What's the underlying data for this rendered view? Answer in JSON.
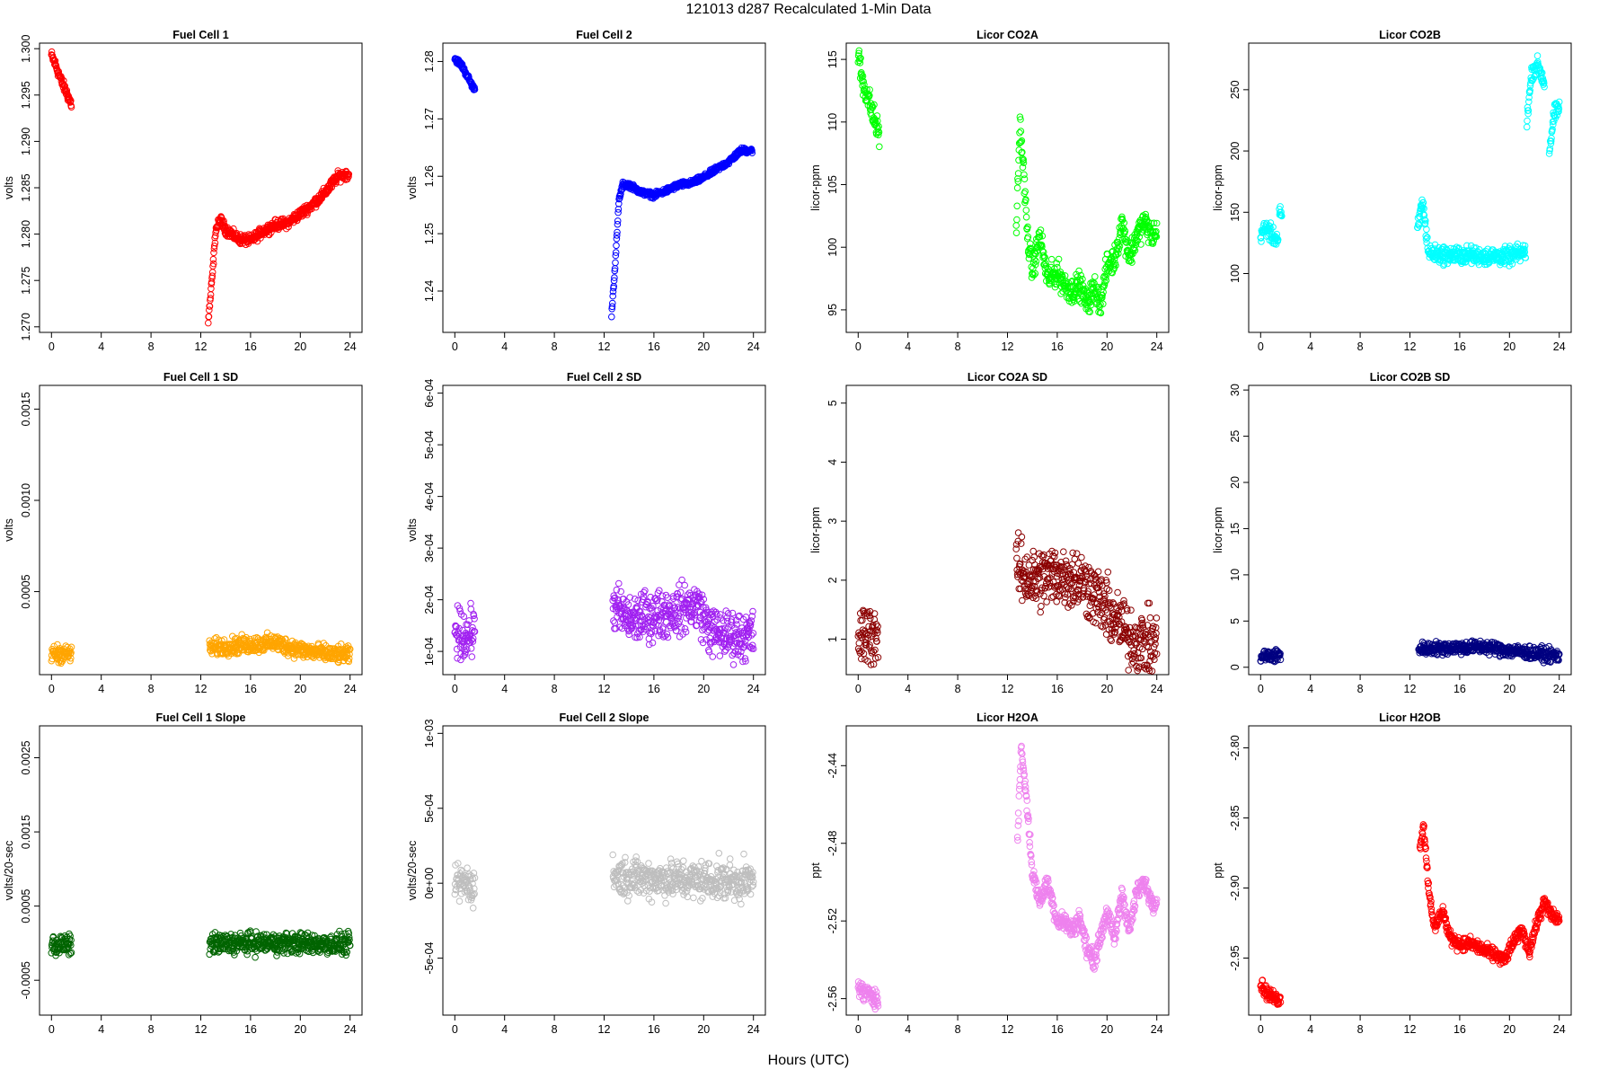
{
  "figure": {
    "title": "121013   d287   Recalculated 1-Min Data",
    "xlabel": "Hours (UTC)"
  },
  "chart_data": [
    {
      "type": "scatter",
      "title": "Fuel Cell 1",
      "ylabel": "volts",
      "color": "#ff0000",
      "xlim": [
        -0.96,
        24.96
      ],
      "xticks": [
        0,
        4,
        8,
        12,
        16,
        20,
        24
      ],
      "ylim": [
        1.2694,
        1.3006
      ],
      "yticks": [
        1.27,
        1.275,
        1.28,
        1.285,
        1.29,
        1.295,
        1.3
      ],
      "ytick_labels": [
        "1.270",
        "1.275",
        "1.280",
        "1.285",
        "1.290",
        "1.295",
        "1.300"
      ],
      "segments": [
        {
          "x": [
            0,
            0.4,
            0.8,
            1.2,
            1.6
          ],
          "y": [
            1.2993,
            1.298,
            1.2965,
            1.2953,
            1.294
          ]
        },
        {
          "x": [
            12.6,
            12.9,
            13.2,
            13.6,
            14,
            15,
            16,
            17,
            18,
            19,
            20,
            21,
            22,
            23,
            23.9
          ],
          "y": [
            1.2705,
            1.275,
            1.2805,
            1.2815,
            1.2805,
            1.2795,
            1.2793,
            1.2803,
            1.281,
            1.2812,
            1.2822,
            1.2832,
            1.2845,
            1.2862,
            1.2865
          ]
        }
      ],
      "spread": 0.00045
    },
    {
      "type": "scatter",
      "title": "Fuel Cell 2",
      "ylabel": "volts",
      "color": "#0000ff",
      "xlim": [
        -0.96,
        24.96
      ],
      "xticks": [
        0,
        4,
        8,
        12,
        16,
        20,
        24
      ],
      "ylim": [
        1.2328,
        1.2832
      ],
      "yticks": [
        1.24,
        1.25,
        1.26,
        1.27,
        1.28
      ],
      "ytick_labels": [
        "1.24",
        "1.25",
        "1.26",
        "1.27",
        "1.28"
      ],
      "segments": [
        {
          "x": [
            0,
            0.5,
            1,
            1.6
          ],
          "y": [
            1.2805,
            1.2795,
            1.2775,
            1.275
          ]
        },
        {
          "x": [
            12.6,
            12.9,
            13.2,
            13.5,
            14,
            15,
            16,
            17,
            18,
            19,
            20,
            21,
            22,
            23,
            23.9
          ],
          "y": [
            1.236,
            1.245,
            1.256,
            1.2585,
            1.2585,
            1.2572,
            1.2567,
            1.2575,
            1.2585,
            1.2588,
            1.2598,
            1.2612,
            1.2625,
            1.2645,
            1.2645
          ]
        }
      ],
      "spread": 0.0004
    },
    {
      "type": "scatter",
      "title": "Licor CO2A",
      "ylabel": "licor-ppm",
      "color": "#00ff00",
      "xlim": [
        -0.96,
        24.96
      ],
      "xticks": [
        0,
        4,
        8,
        12,
        16,
        20,
        24
      ],
      "ylim": [
        93.2,
        116.3
      ],
      "yticks": [
        95,
        100,
        105,
        110,
        115
      ],
      "ytick_labels": [
        "95",
        "100",
        "105",
        "110",
        "115"
      ],
      "segments": [
        {
          "x": [
            0,
            0.4,
            0.8,
            1.2,
            1.7
          ],
          "y": [
            115.3,
            113,
            112,
            110.5,
            109
          ]
        },
        {
          "x": [
            12.7,
            13,
            13.3,
            13.6,
            14,
            14.6,
            15.2,
            16,
            16.6,
            17.2,
            17.8,
            18.4,
            19,
            19.5,
            20,
            20.6,
            21.2,
            21.8,
            22.4,
            23,
            23.6,
            24
          ],
          "y": [
            101,
            110,
            106,
            101,
            98,
            101,
            97.5,
            98,
            97,
            96.5,
            97,
            95.5,
            96.8,
            95.5,
            98.5,
            99,
            102,
            99.2,
            101,
            102,
            101,
            101
          ]
        }
      ],
      "spread": 0.9
    },
    {
      "type": "scatter",
      "title": "Licor CO2B",
      "ylabel": "licor-ppm",
      "color": "#00ffff",
      "xlim": [
        -0.96,
        24.96
      ],
      "xticks": [
        0,
        4,
        8,
        12,
        16,
        20,
        24
      ],
      "ylim": [
        52,
        288
      ],
      "yticks": [
        100,
        150,
        200,
        250
      ],
      "ytick_labels": [
        "100",
        "150",
        "200",
        "250"
      ],
      "segments": [
        {
          "x": [
            0,
            0.5,
            1,
            1.4
          ],
          "y": [
            133,
            137,
            130,
            128
          ]
        },
        {
          "x": [
            1.5,
            1.7
          ],
          "y": [
            150,
            145
          ]
        },
        {
          "x": [
            12.6,
            13,
            13.5,
            14,
            15,
            16,
            17,
            18,
            19,
            20,
            21,
            21.3
          ],
          "y": [
            135,
            160,
            117,
            116,
            115,
            115,
            115,
            114,
            114,
            114,
            117,
            118
          ]
        },
        {
          "x": [
            21.4,
            21.8,
            22.3,
            22.8
          ],
          "y": [
            225,
            265,
            270,
            255
          ]
        },
        {
          "x": [
            23.2,
            23.6,
            24
          ],
          "y": [
            200,
            230,
            235
          ]
        }
      ],
      "spread": 6
    },
    {
      "type": "scatter",
      "title": "Fuel Cell 1 SD",
      "ylabel": "volts",
      "color": "#ffa500",
      "xlim": [
        -0.96,
        24.96
      ],
      "xticks": [
        0,
        4,
        8,
        12,
        16,
        20,
        24
      ],
      "ylim": [
        4.5e-05,
        0.00163
      ],
      "yticks": [
        0.0005,
        0.001,
        0.0015
      ],
      "ytick_labels": [
        "0.0005",
        "0.0010",
        "0.0015"
      ],
      "segments": [
        {
          "x": [
            0,
            0.8,
            1.6
          ],
          "y": [
            0.00016,
            0.00016,
            0.00016
          ]
        },
        {
          "x": [
            12.7,
            14,
            16,
            18,
            20,
            22,
            24
          ],
          "y": [
            0.00019,
            0.0002,
            0.00021,
            0.00022,
            0.00018,
            0.00016,
            0.00015
          ]
        }
      ],
      "spread": 4e-05
    },
    {
      "type": "scatter",
      "title": "Fuel Cell 2 SD",
      "ylabel": "volts",
      "color": "#a020f0",
      "xlim": [
        -0.96,
        24.96
      ],
      "xticks": [
        0,
        4,
        8,
        12,
        16,
        20,
        24
      ],
      "ylim": [
        5.5e-05,
        0.000615
      ],
      "yticks": [
        0.0001,
        0.0002,
        0.0003,
        0.0004,
        0.0005,
        0.0006
      ],
      "ytick_labels": [
        "1e-04",
        "2e-04",
        "3e-04",
        "4e-04",
        "5e-04",
        "6e-04"
      ],
      "segments": [
        {
          "x": [
            0,
            0.8,
            1.6
          ],
          "y": [
            0.00014,
            0.00013,
            0.00014
          ]
        },
        {
          "x": [
            12.7,
            14,
            16,
            18,
            19.5,
            20.5,
            22,
            24
          ],
          "y": [
            0.00019,
            0.00016,
            0.00017,
            0.00018,
            0.00019,
            0.00014,
            0.00013,
            0.00013
          ]
        }
      ],
      "spread": 4e-05
    },
    {
      "type": "scatter",
      "title": "Licor CO2A SD",
      "ylabel": "licor-ppm",
      "color": "#8b0000",
      "xlim": [
        -0.96,
        24.96
      ],
      "xticks": [
        0,
        4,
        8,
        12,
        16,
        20,
        24
      ],
      "ylim": [
        0.4,
        5.3
      ],
      "yticks": [
        1,
        2,
        3,
        4,
        5
      ],
      "ytick_labels": [
        "1",
        "2",
        "3",
        "4",
        "5"
      ],
      "segments": [
        {
          "x": [
            0,
            0.8,
            1.6
          ],
          "y": [
            1.0,
            1.1,
            1.1
          ]
        },
        {
          "x": [
            12.7,
            14,
            16,
            18,
            20,
            22,
            24
          ],
          "y": [
            2.2,
            2.0,
            2.1,
            2.0,
            1.5,
            1.0,
            0.9
          ]
        }
      ],
      "spread": 0.45
    },
    {
      "type": "scatter",
      "title": "Licor CO2B SD",
      "ylabel": "licor-ppm",
      "color": "#000080",
      "xlim": [
        -0.96,
        24.96
      ],
      "xticks": [
        0,
        4,
        8,
        12,
        16,
        20,
        24
      ],
      "ylim": [
        -0.8,
        30.5
      ],
      "yticks": [
        0,
        5,
        10,
        15,
        20,
        25,
        30
      ],
      "ytick_labels": [
        "0",
        "5",
        "10",
        "15",
        "20",
        "25",
        "30"
      ],
      "segments": [
        {
          "x": [
            0,
            0.8,
            1.6
          ],
          "y": [
            1.2,
            1.2,
            1.3
          ]
        },
        {
          "x": [
            12.7,
            15,
            18,
            20,
            22,
            24
          ],
          "y": [
            2.0,
            2.1,
            2.2,
            1.8,
            1.5,
            1.2
          ]
        }
      ],
      "spread": 0.6
    },
    {
      "type": "scatter",
      "title": "Fuel Cell 1 Slope",
      "ylabel": "volts/20-sec",
      "color": "#006400",
      "xlim": [
        -0.96,
        24.96
      ],
      "xticks": [
        0,
        4,
        8,
        12,
        16,
        20,
        24
      ],
      "ylim": [
        -0.00097,
        0.00293
      ],
      "yticks": [
        -0.0005,
        0.0005,
        0.0015,
        0.0025
      ],
      "ytick_labels": [
        "-0.0005",
        "0.0005",
        "0.0015",
        "0.0025"
      ],
      "segments": [
        {
          "x": [
            0,
            0.8,
            1.6
          ],
          "y": [
            -3e-05,
            -3e-05,
            -3e-05
          ]
        },
        {
          "x": [
            12.7,
            16,
            20,
            24
          ],
          "y": [
            -1e-05,
            0,
            0,
            -2e-05
          ]
        }
      ],
      "spread": 0.00012
    },
    {
      "type": "scatter",
      "title": "Fuel Cell 2 Slope",
      "ylabel": "volts/20-sec",
      "color": "#bebebe",
      "xlim": [
        -0.96,
        24.96
      ],
      "xticks": [
        0,
        4,
        8,
        12,
        16,
        20,
        24
      ],
      "ylim": [
        -0.00088,
        0.00105
      ],
      "yticks": [
        -0.0005,
        0,
        0.0005,
        0.001
      ],
      "ytick_labels": [
        "-5e-04",
        "0e+00",
        "5e-04",
        "1e-03"
      ],
      "segments": [
        {
          "x": [
            0,
            0.8,
            1.6
          ],
          "y": [
            0,
            0,
            -2e-05
          ]
        },
        {
          "x": [
            12.7,
            16,
            20,
            24
          ],
          "y": [
            5e-05,
            3e-05,
            2e-05,
            1e-05
          ]
        }
      ],
      "spread": 0.00011
    },
    {
      "type": "scatter",
      "title": "Licor H2OA",
      "ylabel": "ppt",
      "color": "#ee82ee",
      "xlim": [
        -0.96,
        24.96
      ],
      "xticks": [
        0,
        4,
        8,
        12,
        16,
        20,
        24
      ],
      "ylim": [
        -2.5685,
        -2.4195
      ],
      "yticks": [
        -2.56,
        -2.52,
        -2.48,
        -2.44
      ],
      "ytick_labels": [
        "-2.56",
        "-2.52",
        "-2.48",
        "-2.44"
      ],
      "segments": [
        {
          "x": [
            0,
            0.5,
            1,
            1.6
          ],
          "y": [
            -2.553,
            -2.558,
            -2.557,
            -2.561
          ]
        },
        {
          "x": [
            12.8,
            13.1,
            13.5,
            14,
            14.6,
            15.2,
            16,
            16.6,
            17.2,
            17.8,
            18.4,
            19,
            19.6,
            20,
            20.6,
            21.2,
            21.8,
            22.4,
            23,
            23.6,
            24
          ],
          "y": [
            -2.48,
            -2.43,
            -2.455,
            -2.495,
            -2.51,
            -2.5,
            -2.52,
            -2.52,
            -2.525,
            -2.518,
            -2.535,
            -2.54,
            -2.525,
            -2.515,
            -2.53,
            -2.505,
            -2.525,
            -2.505,
            -2.5,
            -2.51,
            -2.51
          ]
        }
      ],
      "spread": 0.004
    },
    {
      "type": "scatter",
      "title": "Licor H2OB",
      "ylabel": "ppt",
      "color": "#ff0000",
      "xlim": [
        -0.96,
        24.96
      ],
      "xticks": [
        0,
        4,
        8,
        12,
        16,
        20,
        24
      ],
      "ylim": [
        -2.9907,
        -2.7843
      ],
      "yticks": [
        -2.95,
        -2.9,
        -2.85,
        -2.8
      ],
      "ytick_labels": [
        "-2.95",
        "-2.90",
        "-2.85",
        "-2.80"
      ],
      "segments": [
        {
          "x": [
            0,
            0.5,
            1,
            1.6
          ],
          "y": [
            -2.968,
            -2.975,
            -2.978,
            -2.98
          ]
        },
        {
          "x": [
            12.8,
            13.1,
            13.5,
            14,
            14.6,
            15.2,
            16,
            17,
            18,
            19,
            19.6,
            20.2,
            21,
            21.6,
            22.2,
            22.8,
            23.4,
            24
          ],
          "y": [
            -2.87,
            -2.855,
            -2.9,
            -2.93,
            -2.915,
            -2.935,
            -2.94,
            -2.94,
            -2.945,
            -2.948,
            -2.952,
            -2.94,
            -2.93,
            -2.945,
            -2.925,
            -2.91,
            -2.92,
            -2.922
          ]
        }
      ],
      "spread": 0.004
    }
  ]
}
